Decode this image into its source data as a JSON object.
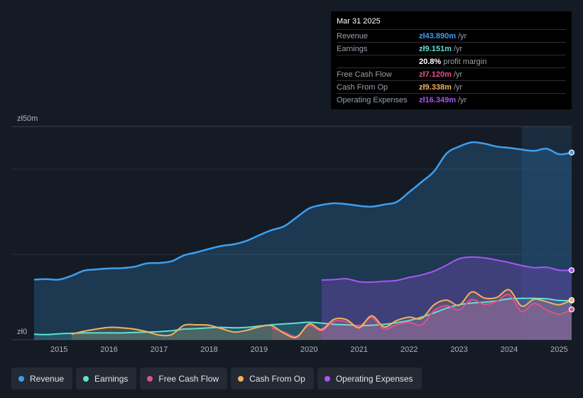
{
  "tooltip": {
    "date": "Mar 31 2025",
    "rows": [
      {
        "label": "Revenue",
        "value": "zł43.890m",
        "unit": "/yr",
        "color": "#3b9ff0"
      },
      {
        "label": "Earnings",
        "value": "zł9.151m",
        "unit": "/yr",
        "color": "#5fe0d2"
      },
      {
        "label": "",
        "value": "20.8%",
        "unit": "profit margin",
        "color": "#ffffff"
      },
      {
        "label": "Free Cash Flow",
        "value": "zł7.120m",
        "unit": "/yr",
        "color": "#e0508a"
      },
      {
        "label": "Cash From Op",
        "value": "zł9.338m",
        "unit": "/yr",
        "color": "#f2b25a"
      },
      {
        "label": "Operating Expenses",
        "value": "zł16.349m",
        "unit": "/yr",
        "color": "#a855f7"
      }
    ]
  },
  "legend": [
    {
      "label": "Revenue",
      "color": "#3b9ff0"
    },
    {
      "label": "Earnings",
      "color": "#5fe0d2"
    },
    {
      "label": "Free Cash Flow",
      "color": "#e0508a"
    },
    {
      "label": "Cash From Op",
      "color": "#f2b25a"
    },
    {
      "label": "Operating Expenses",
      "color": "#a855f7"
    }
  ],
  "chart_data": {
    "type": "area",
    "title": "",
    "ylabel_top": "zł50m",
    "ylabel_bottom": "zł0",
    "ylim": [
      0,
      50
    ],
    "xlim": [
      2014.5,
      2025.25
    ],
    "x_ticks": [
      2015,
      2016,
      2017,
      2018,
      2019,
      2020,
      2021,
      2022,
      2023,
      2024,
      2025
    ],
    "x_tick_labels": [
      "2015",
      "2016",
      "2017",
      "2018",
      "2019",
      "2020",
      "2021",
      "2022",
      "2023",
      "2024",
      "2025"
    ],
    "forecast_start": 2024.25,
    "series": [
      {
        "name": "Revenue",
        "color": "#3b9ff0",
        "x": [
          2014.5,
          2014.75,
          2015.0,
          2015.25,
          2015.5,
          2015.75,
          2016.0,
          2016.25,
          2016.5,
          2016.75,
          2017.0,
          2017.25,
          2017.5,
          2017.75,
          2018.0,
          2018.25,
          2018.5,
          2018.75,
          2019.0,
          2019.25,
          2019.5,
          2019.75,
          2020.0,
          2020.25,
          2020.5,
          2020.75,
          2021.0,
          2021.25,
          2021.5,
          2021.75,
          2022.0,
          2022.25,
          2022.5,
          2022.75,
          2023.0,
          2023.25,
          2023.5,
          2023.75,
          2024.0,
          2024.25,
          2024.5,
          2024.75,
          2025.0,
          2025.25
        ],
        "values": [
          14.1,
          14.2,
          14.1,
          15.0,
          16.2,
          16.5,
          16.7,
          16.8,
          17.1,
          17.9,
          18.0,
          18.4,
          19.8,
          20.5,
          21.3,
          22.0,
          22.4,
          23.2,
          24.5,
          25.7,
          26.6,
          28.7,
          30.8,
          31.6,
          32.0,
          31.8,
          31.4,
          31.2,
          31.7,
          32.3,
          34.6,
          37.0,
          39.5,
          43.7,
          45.3,
          46.3,
          46.0,
          45.3,
          45.0,
          44.6,
          44.3,
          44.8,
          43.5,
          43.9
        ]
      },
      {
        "name": "Earnings",
        "color": "#5fe0d2",
        "x": [
          2014.5,
          2014.75,
          2015.0,
          2015.25,
          2015.5,
          2015.75,
          2016.0,
          2016.25,
          2016.5,
          2016.75,
          2017.0,
          2017.25,
          2017.5,
          2017.75,
          2018.0,
          2018.25,
          2018.5,
          2018.75,
          2019.0,
          2019.25,
          2019.5,
          2019.75,
          2020.0,
          2020.25,
          2020.5,
          2020.75,
          2021.0,
          2021.25,
          2021.5,
          2021.75,
          2022.0,
          2022.25,
          2022.5,
          2022.75,
          2023.0,
          2023.25,
          2023.5,
          2023.75,
          2024.0,
          2024.25,
          2024.5,
          2024.75,
          2025.0,
          2025.25
        ],
        "values": [
          1.3,
          1.2,
          1.4,
          1.5,
          1.6,
          1.6,
          1.6,
          1.6,
          1.7,
          1.8,
          1.9,
          2.1,
          2.5,
          2.6,
          2.8,
          2.9,
          2.8,
          2.9,
          3.2,
          3.5,
          3.7,
          3.9,
          4.1,
          3.9,
          3.6,
          3.5,
          3.3,
          3.4,
          3.6,
          4.0,
          4.5,
          5.3,
          6.3,
          7.4,
          8.2,
          8.6,
          8.8,
          9.1,
          9.6,
          9.7,
          9.7,
          9.6,
          9.2,
          9.2
        ]
      },
      {
        "name": "Free Cash Flow",
        "color": "#e0508a",
        "x": [
          2019.25,
          2019.5,
          2019.75,
          2020.0,
          2020.25,
          2020.5,
          2020.75,
          2021.0,
          2021.25,
          2021.5,
          2021.75,
          2022.0,
          2022.25,
          2022.5,
          2022.75,
          2023.0,
          2023.25,
          2023.5,
          2023.75,
          2024.0,
          2024.25,
          2024.5,
          2024.75,
          2025.0,
          2025.25
        ],
        "values": [
          2.8,
          1.8,
          0.8,
          3.3,
          2.1,
          4.3,
          4.2,
          3.2,
          5.2,
          2.5,
          3.5,
          4.1,
          3.5,
          6.8,
          8.0,
          7.0,
          9.4,
          8.3,
          9.0,
          10.6,
          6.6,
          8.5,
          7.0,
          6.0,
          7.1
        ]
      },
      {
        "name": "Cash From Op",
        "color": "#f2b25a",
        "x": [
          2015.25,
          2015.5,
          2015.75,
          2016.0,
          2016.25,
          2016.5,
          2016.75,
          2017.0,
          2017.25,
          2017.5,
          2017.75,
          2018.0,
          2018.25,
          2018.5,
          2018.75,
          2019.0,
          2019.25,
          2019.5,
          2019.75,
          2020.0,
          2020.25,
          2020.5,
          2020.75,
          2021.0,
          2021.25,
          2021.5,
          2021.75,
          2022.0,
          2022.25,
          2022.5,
          2022.75,
          2023.0,
          2023.25,
          2023.5,
          2023.75,
          2024.0,
          2024.25,
          2024.5,
          2024.75,
          2025.0,
          2025.25
        ],
        "values": [
          1.3,
          2.0,
          2.5,
          2.9,
          2.8,
          2.5,
          1.9,
          1.1,
          1.2,
          3.4,
          3.5,
          3.4,
          2.6,
          1.8,
          2.2,
          3.0,
          3.3,
          1.5,
          0.6,
          3.7,
          2.4,
          4.8,
          4.7,
          2.8,
          5.6,
          3.0,
          4.5,
          5.3,
          5.0,
          8.2,
          9.3,
          8.1,
          11.2,
          9.8,
          9.9,
          11.7,
          7.9,
          9.5,
          8.9,
          8.2,
          9.3
        ]
      },
      {
        "name": "Operating Expenses",
        "color": "#a855f7",
        "x": [
          2020.25,
          2020.5,
          2020.75,
          2021.0,
          2021.25,
          2021.5,
          2021.75,
          2022.0,
          2022.25,
          2022.5,
          2022.75,
          2023.0,
          2023.25,
          2023.5,
          2023.75,
          2024.0,
          2024.25,
          2024.5,
          2024.75,
          2025.0,
          2025.25
        ],
        "values": [
          14.0,
          14.1,
          14.3,
          13.6,
          13.5,
          13.7,
          13.9,
          14.6,
          15.2,
          16.1,
          17.5,
          19.0,
          19.4,
          19.2,
          18.7,
          18.1,
          17.4,
          16.9,
          17.0,
          16.3,
          16.3
        ]
      }
    ]
  }
}
